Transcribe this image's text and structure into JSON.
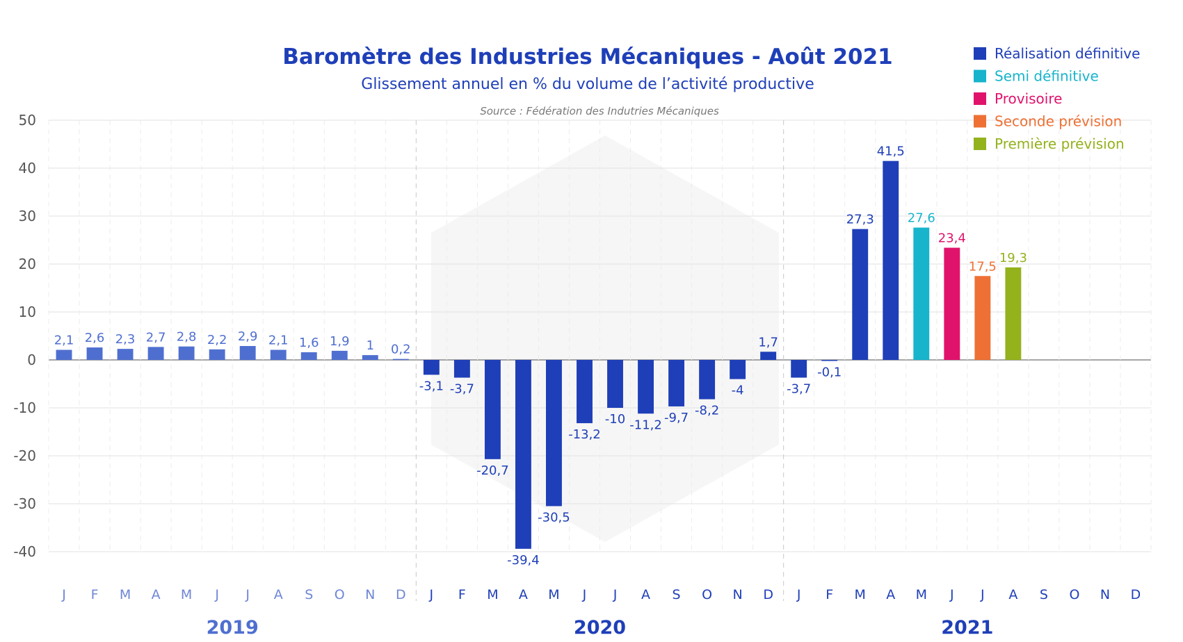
{
  "chart_data": {
    "type": "bar",
    "title": "Baromètre des Industries Mécaniques - Août 2021",
    "subtitle": "Glissement annuel en % du volume de l’activité productive",
    "source": "Source : Fédération des Indutries Mécaniques",
    "ylim": [
      -40,
      50
    ],
    "yticks": [
      50,
      40,
      30,
      20,
      10,
      0,
      -10,
      -20,
      -30,
      -40
    ],
    "grid": true,
    "legend_position": "top-right",
    "years": [
      {
        "label": "2019",
        "color": "#4f6fd0"
      },
      {
        "label": "2020",
        "color": "#1f3fb8"
      },
      {
        "label": "2021",
        "color": "#1f3fb8"
      }
    ],
    "categories": [
      "J",
      "F",
      "M",
      "A",
      "M",
      "J",
      "J",
      "A",
      "S",
      "O",
      "N",
      "D",
      "J",
      "F",
      "M",
      "A",
      "M",
      "J",
      "J",
      "A",
      "S",
      "O",
      "N",
      "D",
      "J",
      "F",
      "M",
      "A",
      "M",
      "J",
      "J",
      "A",
      "S",
      "O",
      "N",
      "D"
    ],
    "values": [
      2.1,
      2.6,
      2.3,
      2.7,
      2.8,
      2.2,
      2.9,
      2.1,
      1.6,
      1.9,
      1,
      0.2,
      -3.1,
      -3.7,
      -20.7,
      -39.4,
      -30.5,
      -13.2,
      -10,
      -11.2,
      -9.7,
      -8.2,
      -4,
      1.7,
      -3.7,
      -0.1,
      27.3,
      41.5,
      27.6,
      23.4,
      17.5,
      19.3,
      null,
      null,
      null,
      null
    ],
    "value_labels": [
      "2,1",
      "2,6",
      "2,3",
      "2,7",
      "2,8",
      "2,2",
      "2,9",
      "2,1",
      "1,6",
      "1,9",
      "1",
      "0,2",
      "-3,1",
      "-3,7",
      "-20,7",
      "-39,4",
      "-30,5",
      "-13,2",
      "-10",
      "-11,2",
      "-9,7",
      "-8,2",
      "-4",
      "1,7",
      "-3,7",
      "-0,1",
      "27,3",
      "41,5",
      "27,6",
      "23,4",
      "17,5",
      "19,3",
      "",
      "",
      "",
      ""
    ],
    "status": [
      "final_2019",
      "final_2019",
      "final_2019",
      "final_2019",
      "final_2019",
      "final_2019",
      "final_2019",
      "final_2019",
      "final_2019",
      "final_2019",
      "final_2019",
      "final_2019",
      "final",
      "final",
      "final",
      "final",
      "final",
      "final",
      "final",
      "final",
      "final",
      "final",
      "final",
      "final",
      "final",
      "final",
      "final",
      "final",
      "semi",
      "provisional",
      "second",
      "first",
      "",
      "",
      "",
      ""
    ],
    "series": [
      {
        "name": "Réalisation définitive",
        "key": "final",
        "color": "#1f3fb8"
      },
      {
        "name": "Semi définitive",
        "key": "semi",
        "color": "#17b4cc"
      },
      {
        "name": "Provisoire",
        "key": "provisional",
        "color": "#e0136c"
      },
      {
        "name": "Seconde prévision",
        "key": "second",
        "color": "#ee7034"
      },
      {
        "name": "Première prévision",
        "key": "first",
        "color": "#93b21c"
      }
    ],
    "color_2019": "#4f6fd0"
  }
}
